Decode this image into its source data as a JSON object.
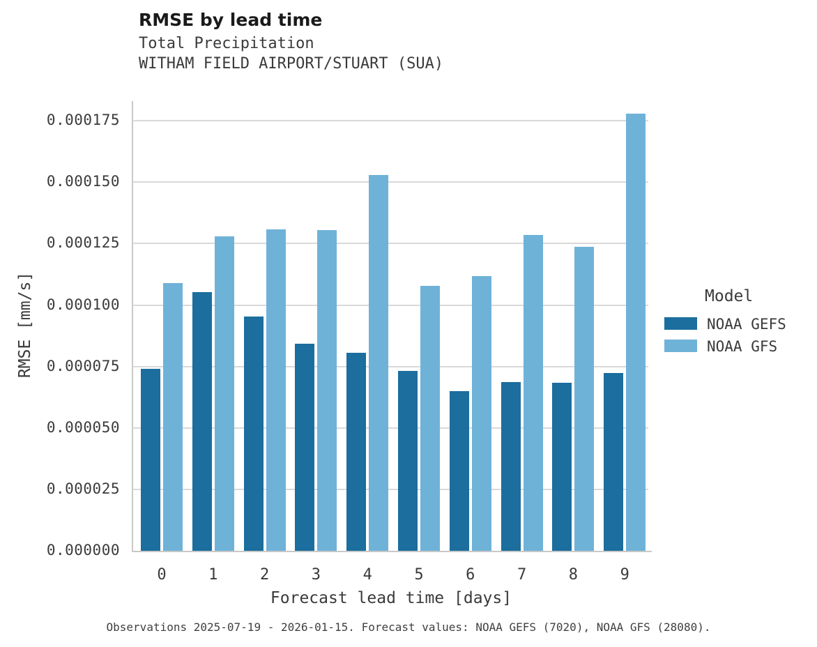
{
  "header": {
    "title": "RMSE by lead time",
    "subtitle_line1": "Total Precipitation",
    "subtitle_line2": "WITHAM FIELD AIRPORT/STUART (SUA)"
  },
  "chart_data": {
    "type": "bar",
    "title": "RMSE by lead time",
    "subtitle": [
      "Total Precipitation",
      "WITHAM FIELD AIRPORT/STUART (SUA)"
    ],
    "categories": [
      "0",
      "1",
      "2",
      "3",
      "4",
      "5",
      "6",
      "7",
      "8",
      "9"
    ],
    "series": [
      {
        "name": "NOAA GEFS",
        "color": "#1b6e9d",
        "values": [
          7.4e-05,
          0.0001053,
          9.53e-05,
          8.43e-05,
          8.06e-05,
          7.32e-05,
          6.5e-05,
          6.88e-05,
          6.83e-05,
          7.23e-05
        ]
      },
      {
        "name": "NOAA GFS",
        "color": "#6fb2d8",
        "values": [
          0.0001089,
          0.000128,
          0.0001308,
          0.0001305,
          0.000153,
          0.0001079,
          0.0001117,
          0.0001284,
          0.0001237,
          0.0001778
        ]
      }
    ],
    "xlabel": "Forecast lead time [days]",
    "ylabel": "RMSE [mm/s]",
    "ylim": [
      0,
      0.000183
    ],
    "yticks": [
      0,
      2.5e-05,
      5e-05,
      7.5e-05,
      0.0001,
      0.000125,
      0.00015,
      0.000175
    ],
    "ytick_labels": [
      "0.000000",
      "0.000025",
      "0.000050",
      "0.000075",
      "0.000100",
      "0.000125",
      "0.000150",
      "0.000175"
    ],
    "grid": "horizontal",
    "legend": {
      "title": "Model",
      "position": "right"
    }
  },
  "caption": "Observations 2025-07-19 - 2026-01-15. Forecast values: NOAA GEFS (7020), NOAA GFS (28080).",
  "colors": {
    "gefs_bar": "#1b6e9d",
    "gfs_bar": "#6fb2d8",
    "gridline": "#d9d9d9",
    "spine": "#c8c8c8",
    "text": "#3a3a3a",
    "title_text": "#1a1a1a"
  }
}
